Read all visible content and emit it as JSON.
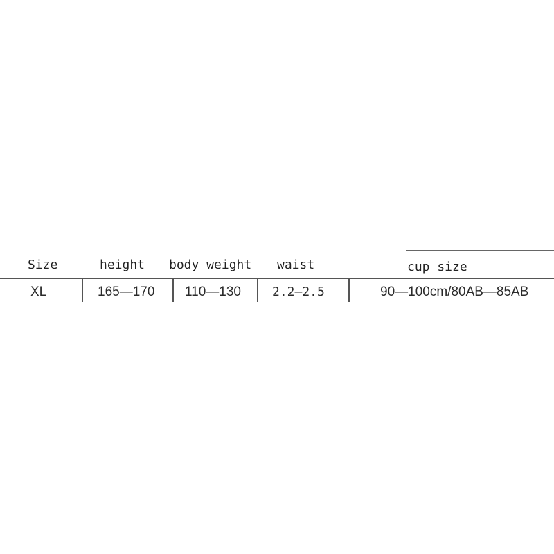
{
  "size_table": {
    "headers": [
      "Size",
      "height",
      "body weight",
      "waist",
      "cup size"
    ],
    "rows": [
      [
        "XL",
        "165—170",
        "110—130",
        "2.2—2.5",
        "90—100cm/80AB—85AB"
      ]
    ]
  }
}
